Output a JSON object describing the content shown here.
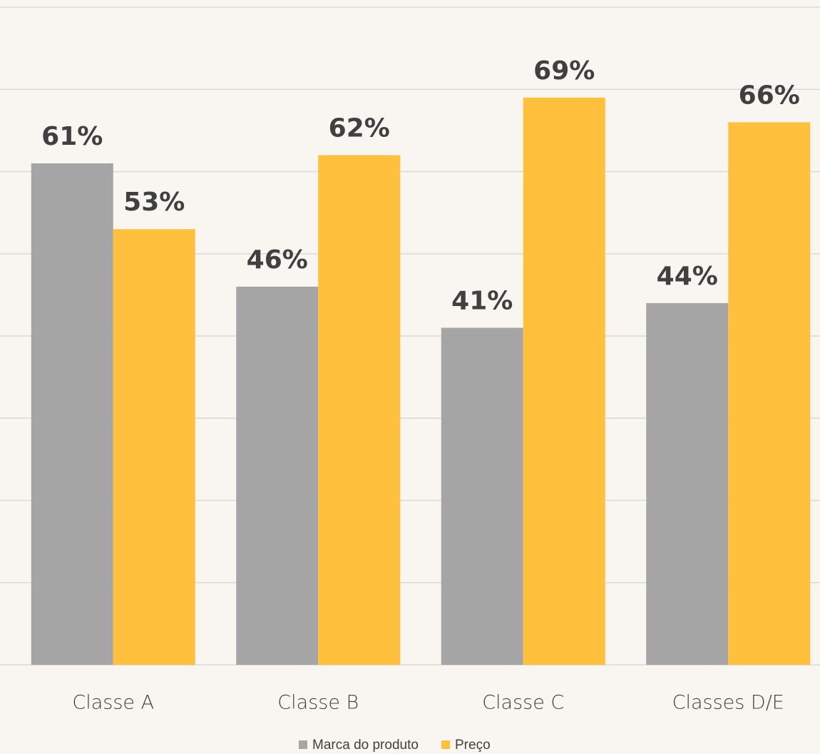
{
  "chart_data": {
    "type": "bar",
    "categories": [
      "Classe A",
      "Classe B",
      "Classe C",
      "Classes D/E"
    ],
    "series": [
      {
        "name": "Marca do produto",
        "color": "#a5a5a5",
        "values": [
          61,
          46,
          41,
          44
        ],
        "value_labels": [
          "61%",
          "46%",
          "41%",
          "44%"
        ]
      },
      {
        "name": "Preço",
        "color": "#ffc03d",
        "values": [
          53,
          62,
          69,
          66
        ],
        "value_labels": [
          "53%",
          "62%",
          "69%",
          "66%"
        ]
      }
    ],
    "ylim": [
      0,
      80
    ],
    "yticks": [
      0,
      10,
      20,
      30,
      40,
      50,
      60,
      70,
      80
    ],
    "grid": true,
    "legend": "bottom"
  }
}
